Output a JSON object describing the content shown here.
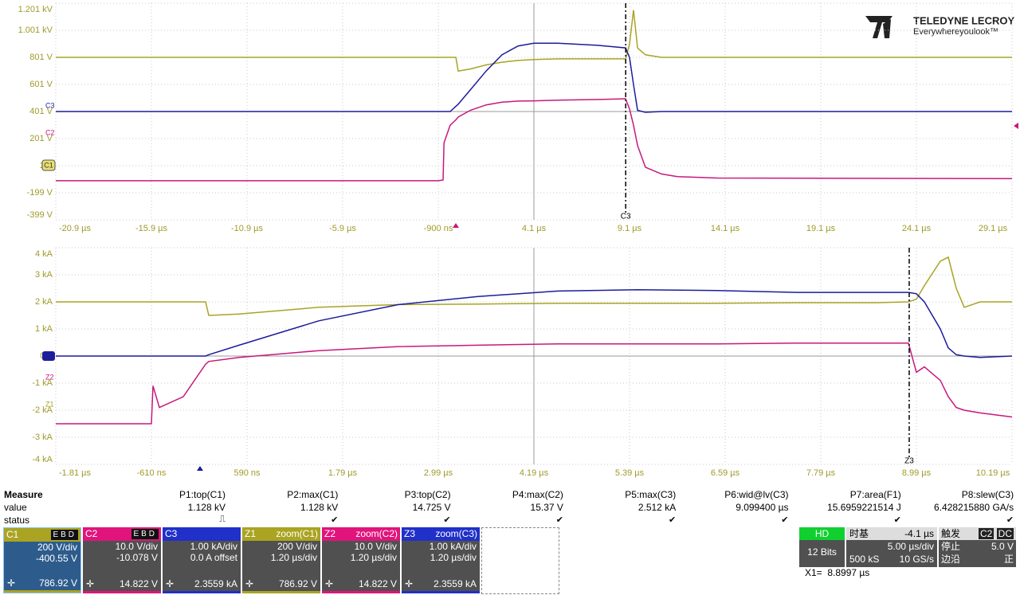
{
  "logo": {
    "brand": "TELEDYNE LECROY",
    "tagline": "Everywhereyoulook™"
  },
  "chart_data": [
    {
      "type": "line",
      "x": [
        -20.9,
        -0.9,
        -0.65,
        -0.6,
        -0.28,
        0.02,
        0.14,
        0.77,
        1.6,
        2.43,
        3.27,
        4.1,
        5.35,
        7.43,
        8.89,
        9.1,
        9.31,
        9.52,
        9.93,
        10.77,
        11.6,
        13.68,
        29.1
      ],
      "xlim": [
        -20.9,
        29.1
      ],
      "xticks": [
        {
          "value": -20.9,
          "label": "-20.9 µs"
        },
        {
          "value": -15.9,
          "label": "-15.9 µs"
        },
        {
          "value": -10.9,
          "label": "-10.9 µs"
        },
        {
          "value": -5.9,
          "label": "-5.9 µs"
        },
        {
          "value": -0.9,
          "label": "-900 ns"
        },
        {
          "value": 4.1,
          "label": "4.1 µs"
        },
        {
          "value": 9.1,
          "label": "9.1 µs"
        },
        {
          "value": 14.1,
          "label": "14.1 µs"
        },
        {
          "value": 19.1,
          "label": "19.1 µs"
        },
        {
          "value": 24.1,
          "label": "24.1 µs"
        },
        {
          "value": 29.1,
          "label": "29.1 µs"
        }
      ],
      "ylim": [
        -399,
        1201
      ],
      "yticks": [
        {
          "value": -399,
          "label": "-399 V"
        },
        {
          "value": -199,
          "label": "-199 V"
        },
        {
          "value": 1,
          "label": "1 V"
        },
        {
          "value": 201,
          "label": "201 V"
        },
        {
          "value": 401,
          "label": "401 V"
        },
        {
          "value": 601,
          "label": "601 V"
        },
        {
          "value": 801,
          "label": "801 V"
        },
        {
          "value": 1001,
          "label": "1.001 kV"
        },
        {
          "value": 1201,
          "label": "1.201 kV"
        }
      ],
      "grid": true,
      "series": [
        {
          "name": "C1",
          "color": "#a8a424",
          "marker_level": 1,
          "values": [
            801,
            801,
            801,
            801,
            801,
            801,
            700,
            715,
            745,
            765,
            778,
            785,
            790,
            790,
            790,
            900,
            1150,
            870,
            820,
            801,
            801,
            801,
            801
          ]
        },
        {
          "name": "C2",
          "color": "#c8187c",
          "marker_level": 201,
          "values": [
            -110,
            -110,
            -105,
            170,
            300,
            340,
            360,
            410,
            450,
            470,
            478,
            480,
            485,
            490,
            495,
            420,
            300,
            150,
            -10,
            -60,
            -80,
            -90,
            -95
          ]
        },
        {
          "name": "C3",
          "color": "#1c1c9c",
          "marker_level": 401,
          "values": [
            401,
            401,
            401,
            401,
            401,
            440,
            455,
            560,
            700,
            820,
            885,
            905,
            905,
            890,
            871,
            800,
            600,
            410,
            395,
            401,
            401,
            401,
            401
          ]
        }
      ],
      "cursor": {
        "x": 8.8997,
        "label": "C3"
      }
    },
    {
      "type": "line",
      "x": [
        -1.81,
        -0.61,
        -0.59,
        -0.51,
        -0.21,
        0.07,
        0.11,
        0.49,
        1.49,
        2.49,
        3.49,
        4.49,
        5.49,
        6.49,
        7.49,
        8.49,
        8.89,
        8.99,
        9.09,
        9.29,
        9.39,
        9.49,
        9.59,
        9.79,
        10.19
      ],
      "xlim": [
        -1.81,
        10.19
      ],
      "xticks": [
        {
          "value": -1.81,
          "label": "-1.81 µs"
        },
        {
          "value": -0.61,
          "label": "-610 ns"
        },
        {
          "value": 0.59,
          "label": "590 ns"
        },
        {
          "value": 1.79,
          "label": "1.79 µs"
        },
        {
          "value": 2.99,
          "label": "2.99 µs"
        },
        {
          "value": 4.19,
          "label": "4.19 µs"
        },
        {
          "value": 5.39,
          "label": "5.39 µs"
        },
        {
          "value": 6.59,
          "label": "6.59 µs"
        },
        {
          "value": 7.79,
          "label": "7.79 µs"
        },
        {
          "value": 8.99,
          "label": "8.99 µs"
        },
        {
          "value": 10.19,
          "label": "10.19 µs"
        }
      ],
      "ylim": [
        -4,
        4
      ],
      "yticks": [
        {
          "value": -4,
          "label": "-4 kA"
        },
        {
          "value": -3,
          "label": "-3 kA"
        },
        {
          "value": -2,
          "label": "-2 kA"
        },
        {
          "value": -1,
          "label": "-1 kA"
        },
        {
          "value": 0,
          "label": "0 A"
        },
        {
          "value": 1,
          "label": "1 kA"
        },
        {
          "value": 2,
          "label": "2 kA"
        },
        {
          "value": 3,
          "label": "3 kA"
        },
        {
          "value": 4,
          "label": "4 kA"
        }
      ],
      "grid": true,
      "series": [
        {
          "name": "Z1",
          "color": "#a8a424",
          "marker_level": -2,
          "values": [
            2,
            2,
            2,
            2,
            2,
            2,
            1.5,
            1.55,
            1.8,
            1.9,
            1.92,
            1.95,
            1.95,
            1.95,
            1.97,
            1.97,
            2,
            2.1,
            2.6,
            3.5,
            3.65,
            2.5,
            1.8,
            2,
            2
          ]
        },
        {
          "name": "Z2",
          "color": "#c8187c",
          "marker_level": -1,
          "values": [
            -2.5,
            -2.5,
            -1.1,
            -1.9,
            -1.5,
            -0.3,
            -0.2,
            -0.05,
            0.2,
            0.35,
            0.4,
            0.45,
            0.45,
            0.45,
            0.48,
            0.48,
            0.48,
            -0.6,
            -0.4,
            -0.9,
            -1.5,
            -1.9,
            -2,
            -2.1,
            -2.25
          ]
        },
        {
          "name": "Z3",
          "color": "#1c1c9c",
          "marker_level": 0,
          "values": [
            0,
            0,
            0,
            0,
            0,
            0,
            0.05,
            0.4,
            1.3,
            1.9,
            2.2,
            2.4,
            2.45,
            2.42,
            2.35,
            2.35,
            2.35,
            2.3,
            2,
            1,
            0.3,
            0.05,
            0,
            -0.05,
            0
          ]
        }
      ],
      "cursor": {
        "x": 8.8997,
        "label": "Z3"
      }
    }
  ],
  "measure": {
    "title": "Measure",
    "row_labels": [
      "value",
      "status"
    ],
    "columns": [
      {
        "name": "P1:top(C1)",
        "value": "1.128 kV",
        "status": "⎍"
      },
      {
        "name": "P2:max(C1)",
        "value": "1.128 kV",
        "status": "✔"
      },
      {
        "name": "P3:top(C2)",
        "value": "14.725 V",
        "status": "✔"
      },
      {
        "name": "P4:max(C2)",
        "value": "15.37 V",
        "status": "✔"
      },
      {
        "name": "P5:max(C3)",
        "value": "2.512 kA",
        "status": "✔"
      },
      {
        "name": "P6:wid@lv(C3)",
        "value": "9.099400 µs",
        "status": "✔"
      },
      {
        "name": "P7:area(F1)",
        "value": "15.6959221514 J",
        "status": "✔"
      },
      {
        "name": "P8:slew(C3)",
        "value": "6.428215880 GA/s",
        "status": "✔"
      }
    ]
  },
  "channels": [
    {
      "name": "C1",
      "flags": "EBD",
      "color": "#aaa422",
      "lines": [
        "200 V/div",
        "-400.55 V"
      ],
      "reading": "786.92 V"
    },
    {
      "name": "C2",
      "flags": "EBD",
      "color": "#e0147c",
      "lines": [
        "10.0 V/div",
        "-10.078 V"
      ],
      "reading": "14.822 V"
    },
    {
      "name": "C3",
      "color": "#2030c8",
      "lines": [
        "1.00 kA/div",
        "0.0 A offset"
      ],
      "reading": "2.3559 kA"
    },
    {
      "name": "Z1",
      "source": "zoom(C1)",
      "color": "#aaa422",
      "lines": [
        "200 V/div",
        "1.20 µs/div"
      ],
      "reading": "786.92 V"
    },
    {
      "name": "Z2",
      "source": "zoom(C2)",
      "color": "#e0147c",
      "lines": [
        "10.0 V/div",
        "1.20 µs/div"
      ],
      "reading": "14.822 V"
    },
    {
      "name": "Z3",
      "source": "zoom(C3)",
      "color": "#2030c8",
      "lines": [
        "1.00 kA/div",
        "1.20 µs/div"
      ],
      "reading": "2.3559 kA"
    }
  ],
  "timebase": {
    "mode": "HD",
    "bits": "12 Bits",
    "label": "时基",
    "delay": "-4.1 µs",
    "scale": "5.00 µs/div",
    "samples": "500 kS",
    "rate": "10 GS/s"
  },
  "trigger": {
    "label": "触发",
    "channel": "C2",
    "coupling": "DC",
    "state": "停止",
    "level": "5.0 V",
    "type": "边沿",
    "slope": "正"
  },
  "cursor_readout": "X1=  8.8997 µs"
}
